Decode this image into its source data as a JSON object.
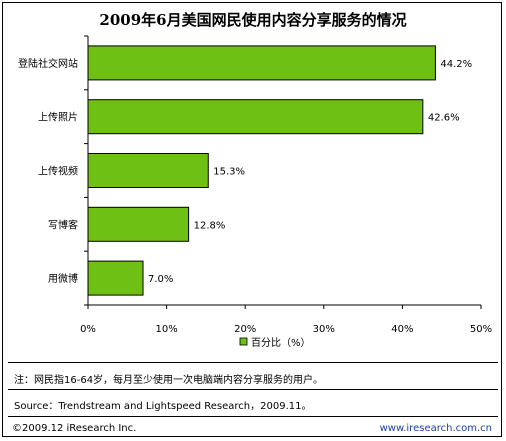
{
  "chart_data": {
    "type": "bar",
    "orientation": "horizontal",
    "title": "2009年6月美国网民使用内容分享服务的情况",
    "categories": [
      "登陆社交网站",
      "上传照片",
      "上传视频",
      "写博客",
      "用微博"
    ],
    "series": [
      {
        "name": "百分比（%）",
        "values": [
          44.2,
          42.6,
          15.3,
          12.8,
          7.0
        ]
      }
    ],
    "value_labels": [
      "44.2%",
      "42.6%",
      "15.3%",
      "12.8%",
      "7.0%"
    ],
    "xlim": [
      0,
      50
    ],
    "xticks": [
      0,
      10,
      20,
      30,
      40,
      50
    ],
    "xtick_labels": [
      "0%",
      "10%",
      "20%",
      "30%",
      "40%",
      "50%"
    ],
    "grid": false,
    "legend_position": "bottom",
    "colors": {
      "bar": "#6fc014",
      "bar_edge": "#000000"
    }
  },
  "footer": {
    "note": "注：网民指16-64岁，每月至少使用一次电脑端内容分享服务的用户。",
    "source": "Source：Trendstream and Lightspeed Research，2009.11。",
    "copyright": "©2009.12 iResearch Inc.",
    "website": "www.iresearch.com.cn"
  }
}
